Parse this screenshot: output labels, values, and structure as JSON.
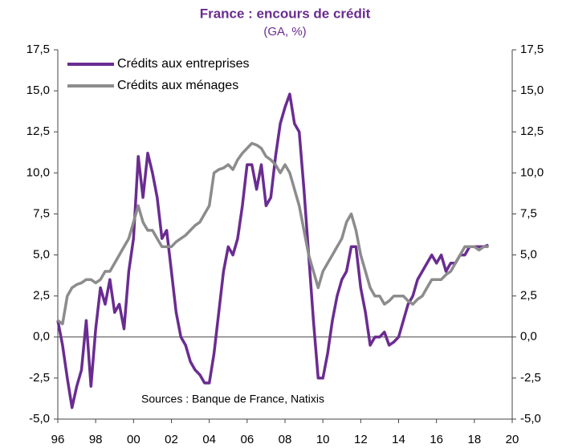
{
  "chart_data": {
    "type": "line",
    "title": "France : encours de crédit",
    "subtitle": "(GA, %)",
    "annotation": "Sources : Banque de France, Natixis",
    "legend": "top-left",
    "x": [
      1996.0,
      1996.25,
      1996.5,
      1996.75,
      1997.0,
      1997.25,
      1997.5,
      1997.75,
      1998.0,
      1998.25,
      1998.5,
      1998.75,
      1999.0,
      1999.25,
      1999.5,
      1999.75,
      2000.0,
      2000.25,
      2000.5,
      2000.75,
      2001.0,
      2001.25,
      2001.5,
      2001.75,
      2002.0,
      2002.25,
      2002.5,
      2002.75,
      2003.0,
      2003.25,
      2003.5,
      2003.75,
      2004.0,
      2004.25,
      2004.5,
      2004.75,
      2005.0,
      2005.25,
      2005.5,
      2005.75,
      2006.0,
      2006.25,
      2006.5,
      2006.75,
      2007.0,
      2007.25,
      2007.5,
      2007.75,
      2008.0,
      2008.25,
      2008.5,
      2008.75,
      2009.0,
      2009.25,
      2009.5,
      2009.75,
      2010.0,
      2010.25,
      2010.5,
      2010.75,
      2011.0,
      2011.25,
      2011.5,
      2011.75,
      2012.0,
      2012.25,
      2012.5,
      2012.75,
      2013.0,
      2013.25,
      2013.5,
      2013.75,
      2014.0,
      2014.25,
      2014.5,
      2014.75,
      2015.0,
      2015.25,
      2015.5,
      2015.75,
      2016.0,
      2016.25,
      2016.5,
      2016.75,
      2017.0,
      2017.25,
      2017.5,
      2017.75,
      2018.0,
      2018.25,
      2018.5,
      2018.75
    ],
    "series": [
      {
        "name": "Crédits aux entreprises",
        "color": "#6a2c91",
        "values": [
          1.0,
          -0.5,
          -2.5,
          -4.3,
          -3.0,
          -2.0,
          1.0,
          -3.0,
          0.5,
          3.0,
          2.0,
          3.5,
          1.5,
          2.0,
          0.5,
          4.0,
          6.0,
          11.0,
          8.5,
          11.2,
          10.0,
          8.5,
          6.0,
          6.5,
          4.0,
          1.5,
          0.0,
          -0.5,
          -1.5,
          -2.0,
          -2.3,
          -2.8,
          -2.8,
          -1.0,
          1.5,
          4.0,
          5.5,
          5.0,
          6.0,
          8.0,
          10.5,
          10.5,
          9.0,
          10.5,
          8.0,
          8.5,
          11.0,
          13.0,
          14.0,
          14.8,
          13.0,
          12.5,
          9.0,
          5.0,
          1.0,
          -2.5,
          -2.5,
          -1.0,
          1.0,
          2.5,
          3.5,
          4.0,
          5.5,
          5.5,
          3.0,
          1.5,
          -0.5,
          0.0,
          0.0,
          0.3,
          -0.5,
          -0.3,
          0.0,
          1.0,
          2.0,
          2.5,
          3.5,
          4.0,
          4.5,
          5.0,
          4.5,
          5.0,
          4.0,
          4.5,
          4.5,
          5.0,
          5.0,
          5.5,
          5.5,
          5.5,
          5.5,
          5.6
        ]
      },
      {
        "name": "Crédits aux ménages",
        "color": "#8c8c8c",
        "values": [
          1.0,
          0.8,
          2.5,
          3.0,
          3.2,
          3.3,
          3.5,
          3.5,
          3.3,
          3.5,
          4.0,
          4.0,
          4.5,
          5.0,
          5.5,
          6.0,
          7.0,
          8.0,
          7.0,
          6.5,
          6.5,
          6.0,
          5.5,
          5.5,
          5.5,
          5.8,
          6.0,
          6.2,
          6.5,
          6.8,
          7.0,
          7.5,
          8.0,
          10.0,
          10.2,
          10.3,
          10.5,
          10.2,
          10.8,
          11.2,
          11.5,
          11.8,
          11.7,
          11.5,
          11.0,
          10.8,
          10.5,
          10.0,
          10.5,
          10.0,
          9.0,
          8.0,
          6.5,
          5.0,
          4.0,
          3.0,
          4.0,
          4.5,
          5.0,
          5.5,
          6.0,
          7.0,
          7.5,
          6.5,
          5.0,
          4.0,
          3.0,
          2.5,
          2.5,
          2.0,
          2.2,
          2.5,
          2.5,
          2.5,
          2.2,
          2.0,
          2.3,
          2.5,
          3.0,
          3.5,
          3.5,
          3.5,
          3.8,
          4.0,
          4.5,
          5.0,
          5.5,
          5.5,
          5.5,
          5.3,
          5.5,
          5.5
        ]
      }
    ],
    "xlim": [
      1996,
      2020
    ],
    "xticks": [
      {
        "value": 1996,
        "label": "96"
      },
      {
        "value": 1998,
        "label": "98"
      },
      {
        "value": 2000,
        "label": "00"
      },
      {
        "value": 2002,
        "label": "02"
      },
      {
        "value": 2004,
        "label": "04"
      },
      {
        "value": 2006,
        "label": "06"
      },
      {
        "value": 2008,
        "label": "08"
      },
      {
        "value": 2010,
        "label": "10"
      },
      {
        "value": 2012,
        "label": "12"
      },
      {
        "value": 2014,
        "label": "14"
      },
      {
        "value": 2016,
        "label": "16"
      },
      {
        "value": 2018,
        "label": "18"
      },
      {
        "value": 2020,
        "label": "20"
      }
    ],
    "ylim": [
      -5,
      17.5
    ],
    "yticks": [
      {
        "value": -5,
        "label": "-5,0"
      },
      {
        "value": -2.5,
        "label": "-2,5"
      },
      {
        "value": 0,
        "label": "0,0"
      },
      {
        "value": 2.5,
        "label": "2,5"
      },
      {
        "value": 5,
        "label": "5,0"
      },
      {
        "value": 7.5,
        "label": "7,5"
      },
      {
        "value": 10,
        "label": "10,0"
      },
      {
        "value": 12.5,
        "label": "12,5"
      },
      {
        "value": 15,
        "label": "15,0"
      },
      {
        "value": 17.5,
        "label": "17,5"
      }
    ],
    "y2lim": [
      -5,
      17.5
    ],
    "y2ticks": [
      {
        "value": -5,
        "label": "-5,0"
      },
      {
        "value": -2.5,
        "label": "-2,5"
      },
      {
        "value": 0,
        "label": "0,0"
      },
      {
        "value": 2.5,
        "label": "2,5"
      },
      {
        "value": 5,
        "label": "5,0"
      },
      {
        "value": 7.5,
        "label": "7,5"
      },
      {
        "value": 10,
        "label": "10,0"
      },
      {
        "value": 12.5,
        "label": "12,5"
      },
      {
        "value": 15,
        "label": "15,0"
      },
      {
        "value": 17.5,
        "label": "17,5"
      }
    ]
  }
}
